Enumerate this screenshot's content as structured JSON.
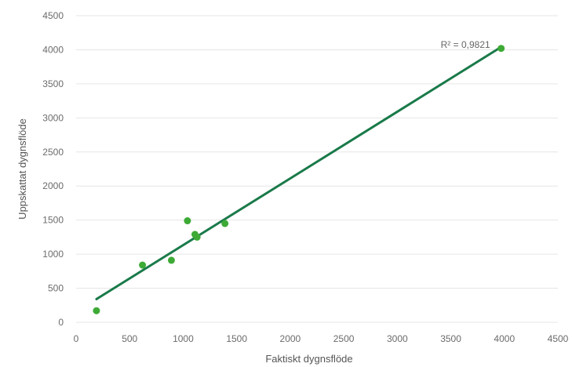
{
  "chart_data": {
    "type": "scatter",
    "xlabel": "Faktiskt dygnsflöde",
    "ylabel": "Uppskattat dygnsflöde",
    "xlim": [
      0,
      4500
    ],
    "ylim": [
      0,
      4500
    ],
    "x_ticks": [
      0,
      500,
      1000,
      1500,
      2000,
      2500,
      3000,
      3500,
      4000,
      4500
    ],
    "y_ticks": [
      0,
      500,
      1000,
      1500,
      2000,
      2500,
      3000,
      3500,
      4000,
      4500
    ],
    "grid": "horizontal",
    "points": [
      {
        "x": 190,
        "y": 170
      },
      {
        "x": 620,
        "y": 840
      },
      {
        "x": 890,
        "y": 910
      },
      {
        "x": 1040,
        "y": 1490
      },
      {
        "x": 1110,
        "y": 1290
      },
      {
        "x": 1130,
        "y": 1250
      },
      {
        "x": 1390,
        "y": 1450
      },
      {
        "x": 3970,
        "y": 4020
      }
    ],
    "trendline": {
      "x": [
        190,
        3970
      ],
      "y": [
        340,
        4040
      ]
    },
    "annotation": "R² = 0,9821",
    "colors": {
      "points": "#3daa35",
      "trendline": "#1a7a4a",
      "grid": "#e6e6e6",
      "text": "#6b6b6b"
    }
  }
}
